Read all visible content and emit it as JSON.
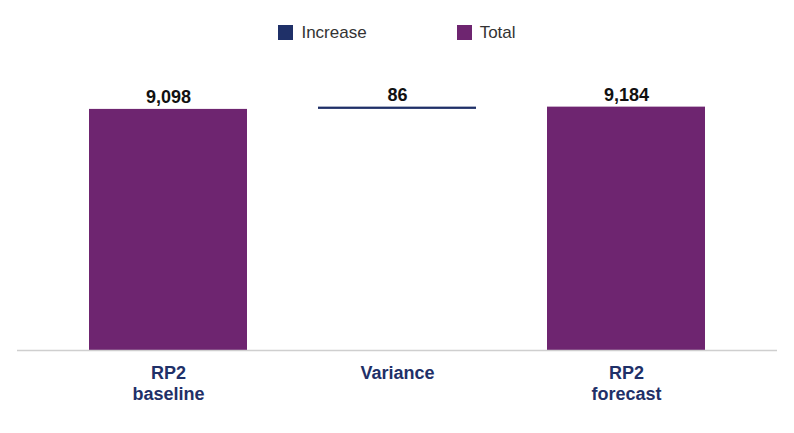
{
  "chart_data": {
    "type": "waterfall",
    "categories": [
      "RP2\nbaseline",
      "Variance",
      "RP2\nforecast"
    ],
    "series": [
      {
        "name": "Increase",
        "color": "#1f3068",
        "values": [
          null,
          86,
          null
        ],
        "value_labels": [
          null,
          "86",
          null
        ]
      },
      {
        "name": "Total",
        "color": "#6e2570",
        "values": [
          9098,
          null,
          9184
        ],
        "value_labels": [
          "9,098",
          null,
          "9,184"
        ]
      }
    ],
    "ylim": [
      0,
      10000
    ],
    "data_labels": true,
    "tick_labels": "x",
    "legend": "top"
  }
}
